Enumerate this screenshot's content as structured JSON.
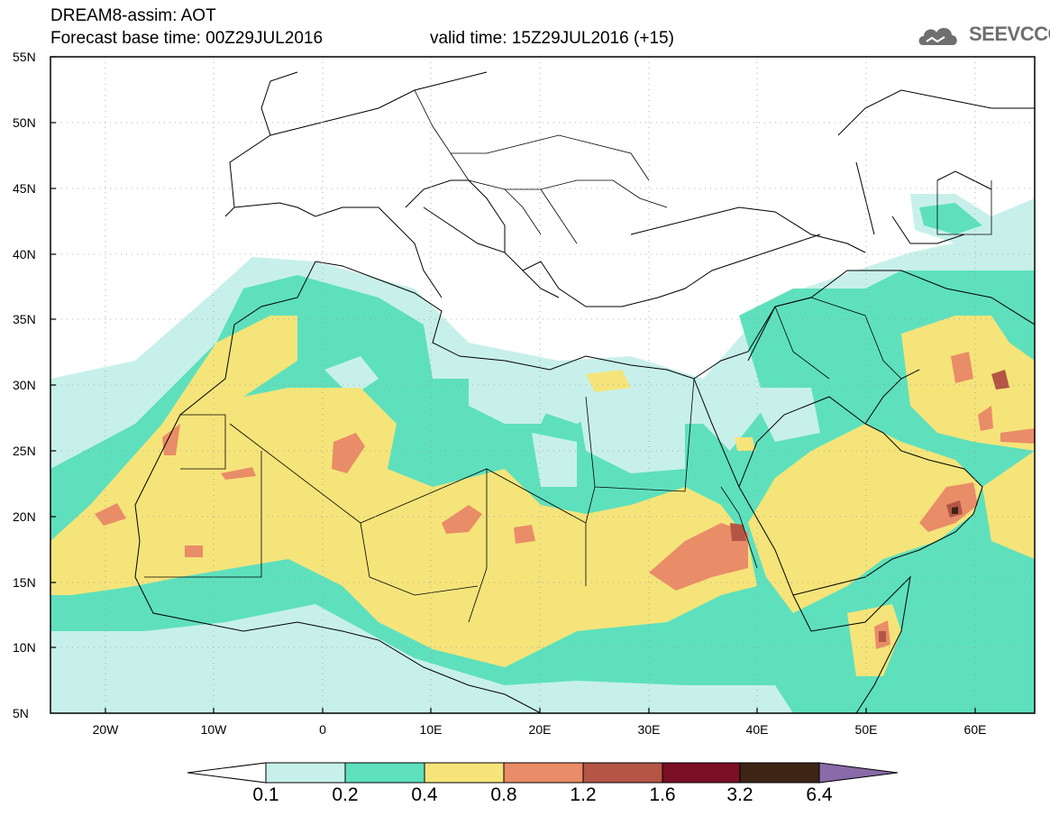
{
  "header": {
    "model": "DREAM8-assim: AOT",
    "base_time": "Forecast base time: 00Z29JUL2016",
    "valid_time": "valid time: 15Z29JUL2016 (+15)",
    "logo_text": "SEEVCCC",
    "logo_icon": "cloud-logo-icon"
  },
  "axes": {
    "lat_labels": [
      "55N",
      "50N",
      "45N",
      "40N",
      "35N",
      "30N",
      "25N",
      "20N",
      "15N",
      "10N",
      "5N"
    ],
    "lon_labels": [
      "20W",
      "10W",
      "0",
      "10E",
      "20E",
      "30E",
      "40E",
      "50E",
      "60E"
    ]
  },
  "colorbar": {
    "labels": [
      "0.1",
      "0.2",
      "0.4",
      "0.8",
      "1.2",
      "1.6",
      "3.2",
      "6.4"
    ],
    "colors": [
      "#c8f0ea",
      "#5ee0bd",
      "#f5e47a",
      "#e98c68",
      "#b45545",
      "#7a0f26",
      "#3d2415",
      "#8a6aa8"
    ],
    "under_color": "#ffffff"
  },
  "map_colors": {
    "land": "#ffffff",
    "border": "#000000",
    "grid": "#9a9a9a"
  }
}
